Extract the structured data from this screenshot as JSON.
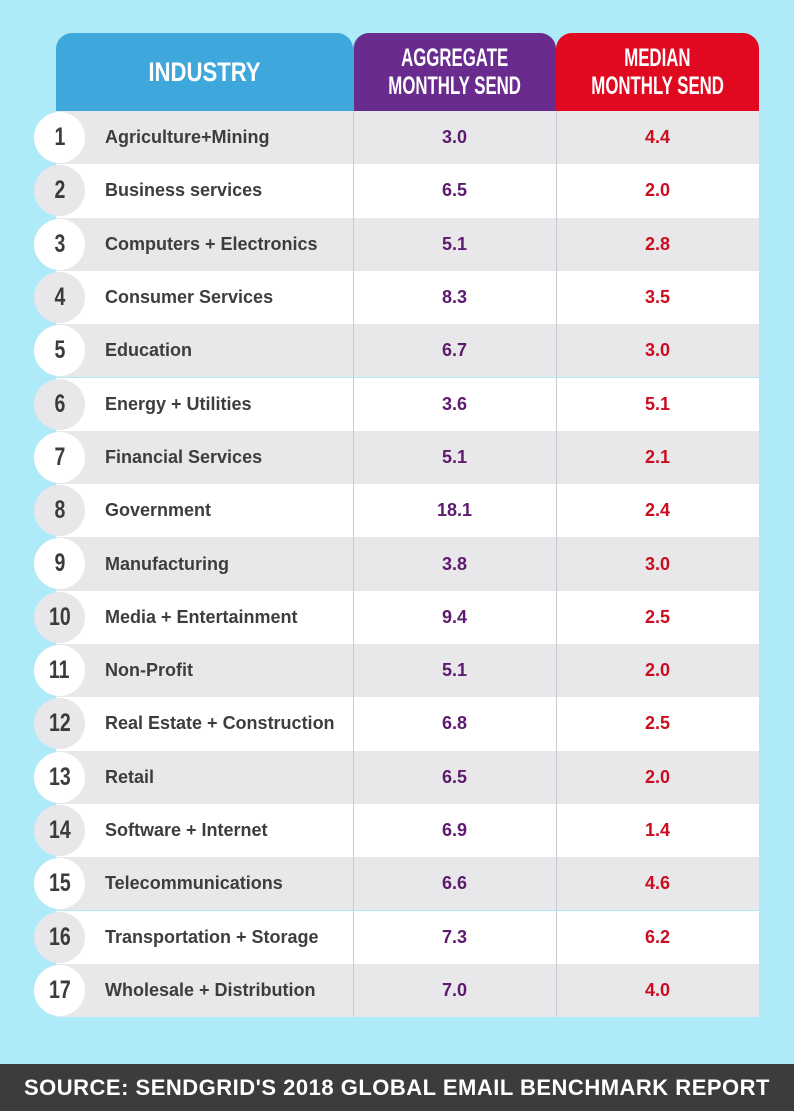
{
  "colors": {
    "background": "#aeeaf8",
    "industry_header": "#3ea8dd",
    "aggregate_header": "#6a2b8e",
    "median_header": "#e1091f",
    "aggregate_text": "#5e1a6e",
    "median_text": "#cc0d20",
    "footer": "#3c3c3c"
  },
  "chart_data": {
    "type": "table",
    "columns": [
      "INDUSTRY",
      "AGGREGATE MONTHLY SEND",
      "MEDIAN MONTHLY SEND"
    ],
    "headers": {
      "industry": "INDUSTRY",
      "aggregate_line1": "AGGREGATE",
      "aggregate_line2": "MONTHLY SEND",
      "median_line1": "MEDIAN",
      "median_line2": "MONTHLY SEND"
    },
    "rows": [
      {
        "rank": "1",
        "industry": "Agriculture+Mining",
        "aggregate": "3.0",
        "median": "4.4"
      },
      {
        "rank": "2",
        "industry": "Business services",
        "aggregate": "6.5",
        "median": "2.0"
      },
      {
        "rank": "3",
        "industry": "Computers + Electronics",
        "aggregate": "5.1",
        "median": "2.8"
      },
      {
        "rank": "4",
        "industry": "Consumer Services",
        "aggregate": "8.3",
        "median": "3.5"
      },
      {
        "rank": "5",
        "industry": "Education",
        "aggregate": "6.7",
        "median": "3.0"
      },
      {
        "rank": "6",
        "industry": "Energy + Utilities",
        "aggregate": "3.6",
        "median": "5.1"
      },
      {
        "rank": "7",
        "industry": "Financial Services",
        "aggregate": "5.1",
        "median": "2.1"
      },
      {
        "rank": "8",
        "industry": "Government",
        "aggregate": "18.1",
        "median": "2.4"
      },
      {
        "rank": "9",
        "industry": "Manufacturing",
        "aggregate": "3.8",
        "median": "3.0"
      },
      {
        "rank": "10",
        "industry": "Media + Entertainment",
        "aggregate": "9.4",
        "median": "2.5"
      },
      {
        "rank": "11",
        "industry": "Non-Profit",
        "aggregate": "5.1",
        "median": "2.0"
      },
      {
        "rank": "12",
        "industry": "Real Estate + Construction",
        "aggregate": "6.8",
        "median": "2.5"
      },
      {
        "rank": "13",
        "industry": "Retail",
        "aggregate": "6.5",
        "median": "2.0"
      },
      {
        "rank": "14",
        "industry": "Software + Internet",
        "aggregate": "6.9",
        "median": "1.4"
      },
      {
        "rank": "15",
        "industry": "Telecommunications",
        "aggregate": "6.6",
        "median": "4.6"
      },
      {
        "rank": "16",
        "industry": "Transportation + Storage",
        "aggregate": "7.3",
        "median": "6.2"
      },
      {
        "rank": "17",
        "industry": "Wholesale + Distribution",
        "aggregate": "7.0",
        "median": "4.0"
      }
    ],
    "source": "SOURCE: SENDGRID'S 2018 GLOBAL EMAIL BENCHMARK REPORT"
  }
}
